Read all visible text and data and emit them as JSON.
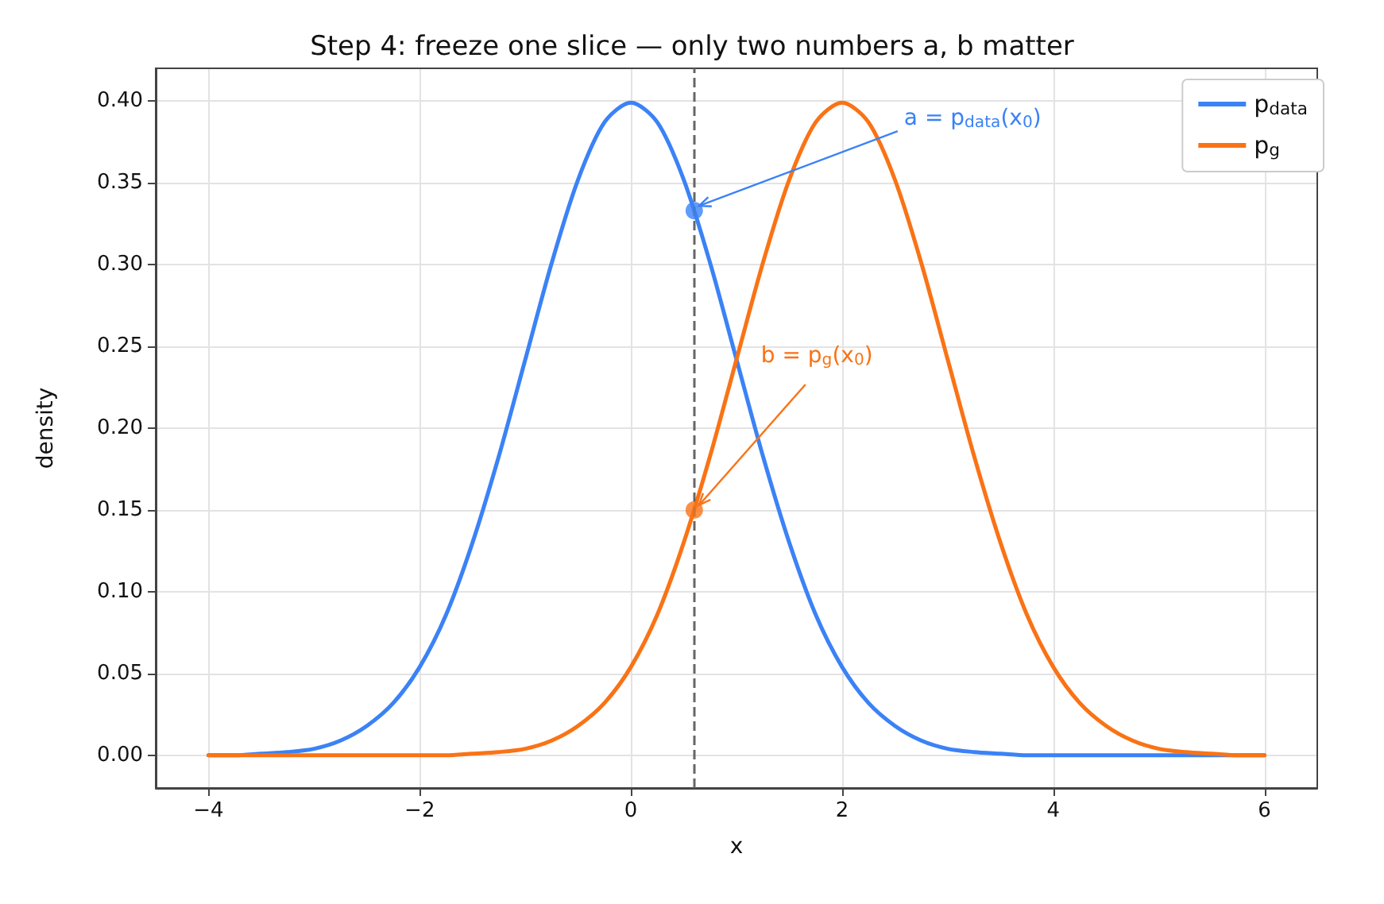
{
  "chart_data": {
    "type": "line",
    "title": "Step 4: freeze one slice — only two numbers a, b matter",
    "xlabel": "x",
    "ylabel": "density",
    "x": [
      -4,
      -3.75,
      -3.5,
      -3.25,
      -3,
      -2.75,
      -2.5,
      -2.25,
      -2,
      -1.75,
      -1.5,
      -1.25,
      -1,
      -0.75,
      -0.5,
      -0.25,
      0,
      0.25,
      0.5,
      0.75,
      1,
      1.25,
      1.5,
      1.75,
      2,
      2.25,
      2.5,
      2.75,
      3,
      3.25,
      3.5,
      3.75,
      4,
      4.25,
      4.5,
      4.75,
      5,
      5.25,
      5.5,
      5.75,
      6
    ],
    "series": [
      {
        "name": "p$_{data}$",
        "color": "#3b82f6",
        "values": [
          0,
          0,
          0.001,
          0.002,
          0.004,
          0.009,
          0.018,
          0.032,
          0.054,
          0.086,
          0.13,
          0.183,
          0.242,
          0.301,
          0.352,
          0.387,
          0.399,
          0.387,
          0.352,
          0.301,
          0.242,
          0.183,
          0.13,
          0.086,
          0.054,
          0.032,
          0.018,
          0.009,
          0.004,
          0.002,
          0.001,
          0,
          0,
          0,
          0,
          0,
          0,
          0,
          0,
          0,
          0
        ]
      },
      {
        "name": "p$_{g}$",
        "color": "#f97316",
        "values": [
          0,
          0,
          0,
          0,
          0,
          0,
          0,
          0,
          0,
          0,
          0.001,
          0.002,
          0.004,
          0.009,
          0.018,
          0.032,
          0.054,
          0.086,
          0.13,
          0.183,
          0.242,
          0.301,
          0.352,
          0.387,
          0.399,
          0.387,
          0.352,
          0.301,
          0.242,
          0.183,
          0.13,
          0.086,
          0.054,
          0.032,
          0.018,
          0.009,
          0.004,
          0.002,
          0.001,
          0,
          0
        ]
      },
      {
        "type": "scatter",
        "marker": "circle",
        "color": "#3b82f6",
        "x": [
          0.6
        ],
        "values": [
          0.333
        ]
      },
      {
        "type": "scatter",
        "marker": "circle",
        "color": "#f97316",
        "x": [
          0.6
        ],
        "values": [
          0.15
        ]
      }
    ],
    "annotations": [
      {
        "text": "a = p$_{data}$(x$_{0}$)",
        "x": 0.6,
        "y": 0.333
      },
      {
        "text": "b = p$_{g}$(x$_{0}$)",
        "x": 0.6,
        "y": 0.15
      }
    ],
    "ref_lines": [
      {
        "axis": "x",
        "value": 0.6,
        "color": "#666666",
        "line_style": "dashed"
      }
    ],
    "xlim": [
      -4.5,
      6.5
    ],
    "xticks": [
      {
        "value": -4,
        "label": "−4"
      },
      {
        "value": -2,
        "label": "−2"
      },
      0,
      2,
      4,
      6
    ],
    "ylim": [
      -0.02,
      0.42
    ],
    "yticks": [
      {
        "value": 0,
        "label": "0.00"
      },
      {
        "value": 0.05,
        "label": "0.05"
      },
      {
        "value": 0.1,
        "label": "0.10"
      },
      {
        "value": 0.15,
        "label": "0.15"
      },
      {
        "value": 0.2,
        "label": "0.20"
      },
      {
        "value": 0.25,
        "label": "0.25"
      },
      {
        "value": 0.3,
        "label": "0.30"
      },
      {
        "value": 0.35,
        "label": "0.35"
      },
      {
        "value": 0.4,
        "label": "0.40"
      }
    ],
    "grid": true,
    "legend": "top right"
  }
}
